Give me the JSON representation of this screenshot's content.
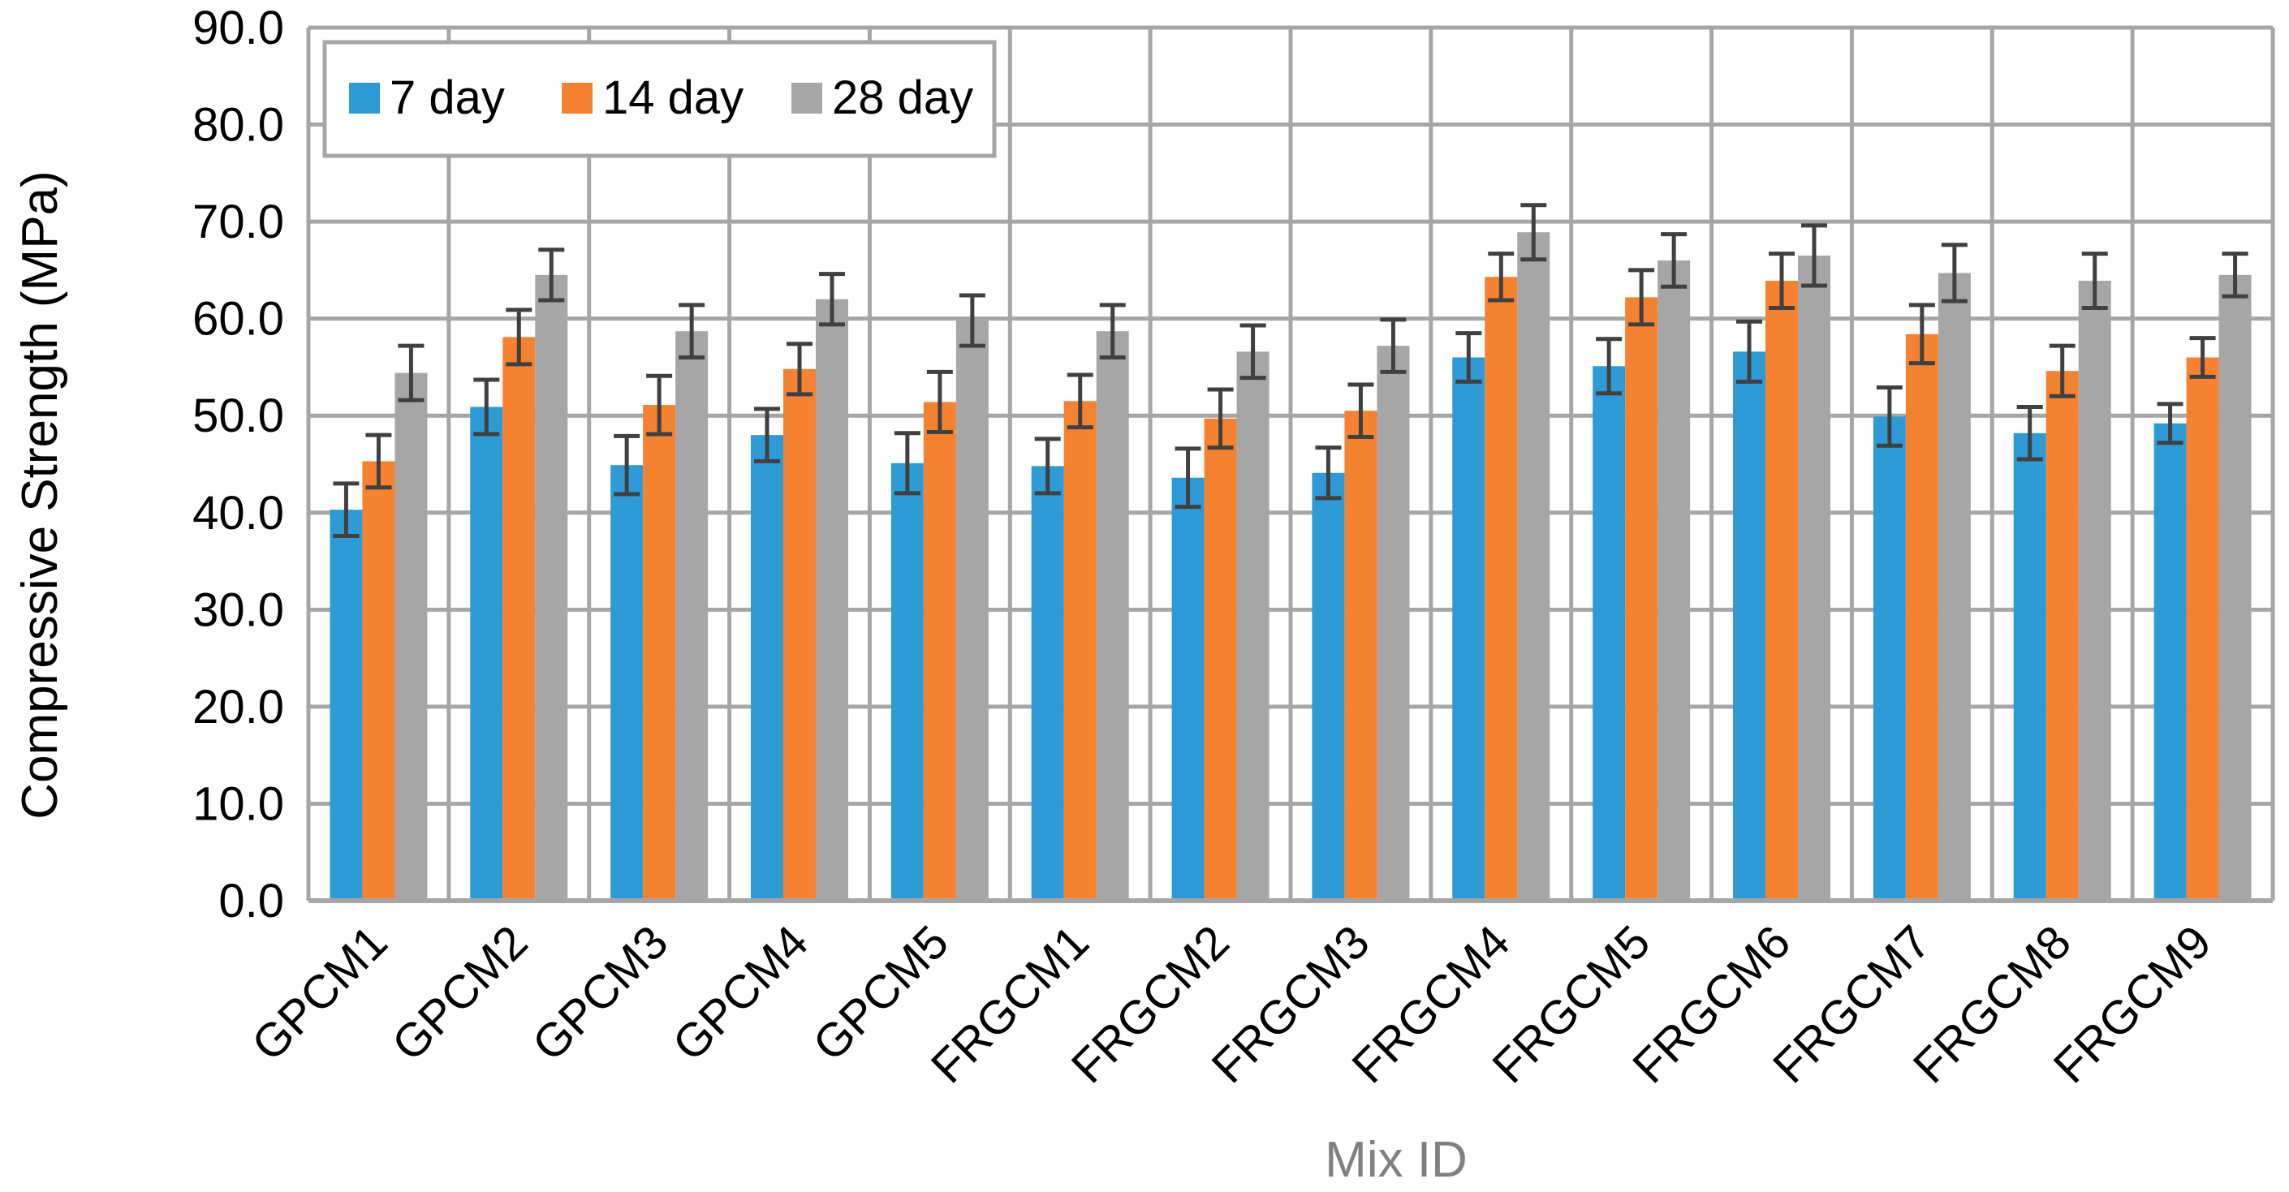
{
  "chart_data": {
    "type": "bar",
    "title": "",
    "xlabel": "Mix ID",
    "ylabel": "Compressive  Strength (MPa)",
    "ylim": [
      0,
      90
    ],
    "yticks": [
      "0.0",
      "10.0",
      "20.0",
      "30.0",
      "40.0",
      "50.0",
      "60.0",
      "70.0",
      "80.0",
      "90.0"
    ],
    "grid": true,
    "legend_position": "top-left",
    "categories": [
      "GPCM1",
      "GPCM2",
      "GPCM3",
      "GPCM4",
      "GPCM5",
      "FRGCM1",
      "FRGCM2",
      "FRGCM3",
      "FRGCM4",
      "FRGCM5",
      "FRGCM6",
      "FRGCM7",
      "FRGCM8",
      "FRGCM9"
    ],
    "series": [
      {
        "name": "7 day",
        "color": "#2e9ad6",
        "values": [
          40.3,
          50.9,
          44.9,
          48.0,
          45.1,
          44.8,
          43.6,
          44.1,
          56.0,
          55.1,
          56.6,
          49.9,
          48.2,
          49.2
        ],
        "errors": [
          2.7,
          2.8,
          3.0,
          2.7,
          3.1,
          2.8,
          3.0,
          2.6,
          2.5,
          2.8,
          3.1,
          3.0,
          2.7,
          2.0
        ]
      },
      {
        "name": "14 day",
        "color": "#f58231",
        "values": [
          45.3,
          58.1,
          51.1,
          54.8,
          51.4,
          51.5,
          49.7,
          50.5,
          64.3,
          62.2,
          63.9,
          58.4,
          54.6,
          56.0
        ],
        "errors": [
          2.7,
          2.8,
          3.0,
          2.6,
          3.1,
          2.7,
          3.0,
          2.7,
          2.4,
          2.8,
          2.8,
          3.0,
          2.6,
          2.0
        ]
      },
      {
        "name": "28 day",
        "color": "#a6a6a6",
        "values": [
          54.4,
          64.5,
          58.7,
          62.0,
          59.8,
          58.7,
          56.6,
          57.2,
          68.9,
          66.0,
          66.5,
          64.7,
          63.9,
          64.5
        ],
        "errors": [
          2.8,
          2.6,
          2.7,
          2.6,
          2.6,
          2.7,
          2.7,
          2.7,
          2.8,
          2.7,
          3.1,
          2.9,
          2.8,
          2.2
        ]
      }
    ]
  }
}
